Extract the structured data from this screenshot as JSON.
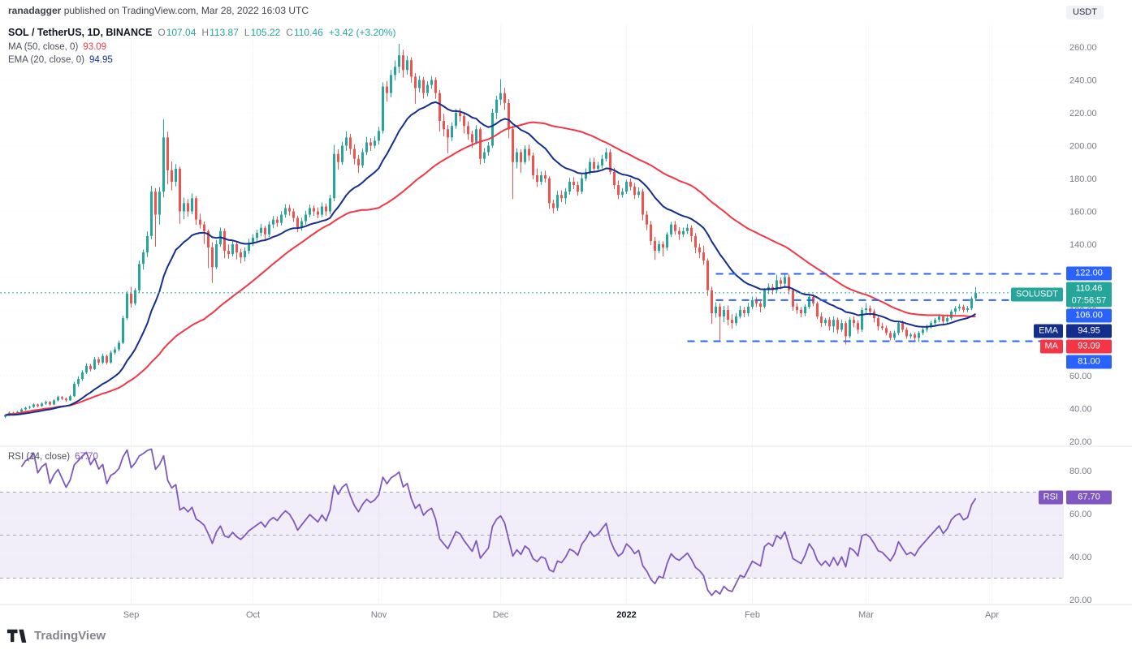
{
  "attribution": {
    "author": "ranadagger",
    "rest": " published on TradingView.com, Mar 28, 2022 16:03 UTC"
  },
  "quote_badge": "USDT",
  "legend": {
    "title": "SOL / TetherUS, 1D, BINANCE",
    "ohlc": [
      {
        "k": "O",
        "v": "107.04"
      },
      {
        "k": "H",
        "v": "113.87"
      },
      {
        "k": "L",
        "v": "105.22"
      },
      {
        "k": "C",
        "v": "110.46"
      }
    ],
    "change": "+3.42 (+3.20%)",
    "ma_label": "MA (50, close, 0)",
    "ma_value": "93.09",
    "ema_label": "EMA (20, close, 0)",
    "ema_value": "94.95",
    "rsi_label": "RSI (14, close)",
    "rsi_value": "67.70"
  },
  "footer": {
    "logo_text": "TradingView"
  },
  "colors": {
    "up": "#26a69a",
    "down": "#ef5350",
    "ma": "#f23645",
    "ema": "#142e8d",
    "level": "#2962ff",
    "last": "#26a69a",
    "rsi": "#7e57c2",
    "axis_text": "#787b86",
    "grid": "#eef1f6",
    "guide": "#a6a9b5",
    "separator": "#e0e3eb",
    "major_tick": "#131722"
  },
  "chart_data": {
    "type": "candlestick",
    "symbol": "SOL/USDT",
    "exchange": "BINANCE",
    "interval": "1D",
    "start_date": "2021-08-01",
    "end_date": "2022-03-28",
    "price_axis_ticks": [
      260,
      240,
      220,
      200,
      180,
      160,
      140,
      120,
      100,
      80,
      60,
      40,
      20
    ],
    "x_ticks": [
      {
        "label": "Sep",
        "index": 31
      },
      {
        "label": "Oct",
        "index": 61
      },
      {
        "label": "Nov",
        "index": 92
      },
      {
        "label": "Dec",
        "index": 122
      },
      {
        "label": "2022",
        "index": 153,
        "major": true
      },
      {
        "label": "Feb",
        "index": 184
      },
      {
        "label": "Mar",
        "index": 212
      },
      {
        "label": "Apr",
        "index": 243
      }
    ],
    "last_price": {
      "value": 110.46,
      "label": "110.46",
      "countdown": "07:56:57",
      "symbol_badge": "SOLUSDT"
    },
    "levels": [
      {
        "value": 122,
        "label": "122.00",
        "start_index": 175
      },
      {
        "value": 106,
        "label": "106.00",
        "start_index": 175
      },
      {
        "value": 81,
        "label": "81.00",
        "start_index": 168
      }
    ],
    "indicators": [
      {
        "name": "MA",
        "type": "sma",
        "period": 50,
        "source": "close",
        "value": 93.09,
        "label": "93.09"
      },
      {
        "name": "EMA",
        "type": "ema",
        "period": 20,
        "source": "close",
        "value": 94.95,
        "label": "94.95"
      }
    ],
    "rsi": {
      "name": "RSI",
      "period": 14,
      "source": "close",
      "value": 67.7,
      "label": "67.70",
      "upper": 70,
      "middle": 50,
      "lower": 30,
      "axis_ticks": [
        80,
        60,
        40,
        20
      ]
    },
    "candles": [
      [
        35,
        36.5,
        34.2,
        36
      ],
      [
        36,
        38.2,
        35.5,
        37.5
      ],
      [
        37.5,
        38,
        35.8,
        36.5
      ],
      [
        36.5,
        38.6,
        36,
        38
      ],
      [
        38,
        40.2,
        37.4,
        39.5
      ],
      [
        39.5,
        41.2,
        38.8,
        40.5
      ],
      [
        40.5,
        41.8,
        39.6,
        41
      ],
      [
        41,
        43.3,
        40.4,
        42.5
      ],
      [
        42.5,
        43.1,
        40.8,
        41.5
      ],
      [
        41.5,
        43.8,
        41,
        43
      ],
      [
        43,
        44.9,
        42.2,
        44
      ],
      [
        44,
        44.6,
        41.8,
        42.5
      ],
      [
        42.5,
        45.8,
        42,
        45
      ],
      [
        45,
        47.9,
        44.4,
        47
      ],
      [
        47,
        47.6,
        45.2,
        46
      ],
      [
        46,
        46.8,
        44,
        45
      ],
      [
        45,
        48.4,
        44.6,
        47.5
      ],
      [
        47.5,
        56.2,
        47,
        55
      ],
      [
        55,
        59.6,
        53.2,
        58
      ],
      [
        58,
        63.4,
        56.8,
        62
      ],
      [
        62,
        67.6,
        61,
        66
      ],
      [
        66,
        67.2,
        62.6,
        64
      ],
      [
        64,
        71.4,
        63.4,
        70
      ],
      [
        70,
        71.2,
        66.4,
        68
      ],
      [
        68,
        73.5,
        67,
        72
      ],
      [
        72,
        72.8,
        66.8,
        68
      ],
      [
        68,
        75.4,
        67.2,
        74
      ],
      [
        74,
        77.6,
        72.8,
        76
      ],
      [
        76,
        81.4,
        74.8,
        80
      ],
      [
        80,
        96.5,
        79.2,
        95
      ],
      [
        95,
        111.5,
        93.8,
        110
      ],
      [
        110,
        114,
        101.5,
        104
      ],
      [
        104,
        113.4,
        102.8,
        112
      ],
      [
        112,
        130.2,
        110.6,
        128
      ],
      [
        128,
        136.8,
        124.5,
        135
      ],
      [
        135,
        147.8,
        132.2,
        145
      ],
      [
        145,
        175.5,
        143,
        172
      ],
      [
        172,
        174.2,
        138.5,
        158
      ],
      [
        158,
        174.8,
        152,
        172
      ],
      [
        172,
        216,
        168.5,
        205
      ],
      [
        205,
        208.5,
        176.5,
        185
      ],
      [
        185,
        190.4,
        172.8,
        178
      ],
      [
        178,
        188.8,
        175.2,
        186
      ],
      [
        186,
        187.2,
        152.5,
        160
      ],
      [
        160,
        168.4,
        155.2,
        165
      ],
      [
        165,
        167.6,
        156.8,
        160
      ],
      [
        160,
        171,
        158.2,
        168
      ],
      [
        168,
        169.2,
        151.8,
        155
      ],
      [
        155,
        158.6,
        149.5,
        152
      ],
      [
        152,
        153.8,
        140.2,
        148
      ],
      [
        148,
        149,
        125.5,
        138
      ],
      [
        138,
        141.2,
        116.5,
        126
      ],
      [
        126,
        142.6,
        124.8,
        140
      ],
      [
        140,
        150.2,
        138.4,
        148
      ],
      [
        148,
        149.6,
        131.5,
        136
      ],
      [
        136,
        139.8,
        131.2,
        134
      ],
      [
        134,
        142.2,
        132.6,
        140
      ],
      [
        140,
        141.6,
        130.8,
        135
      ],
      [
        135,
        137.2,
        128.4,
        132
      ],
      [
        132,
        138,
        129.5,
        136
      ],
      [
        136,
        143.4,
        134.2,
        141
      ],
      [
        141,
        146.2,
        138.8,
        144
      ],
      [
        144,
        148.8,
        141.6,
        147
      ],
      [
        147,
        152.4,
        144.8,
        150
      ],
      [
        150,
        151.2,
        142.6,
        146
      ],
      [
        146,
        154,
        144.4,
        152
      ],
      [
        152,
        157.2,
        149.8,
        155
      ],
      [
        155,
        157,
        150.6,
        153
      ],
      [
        153,
        160.2,
        151.4,
        158
      ],
      [
        158,
        164.4,
        156.2,
        162
      ],
      [
        162,
        164,
        157.4,
        160
      ],
      [
        160,
        161.8,
        153.6,
        156
      ],
      [
        156,
        157.4,
        147.5,
        150
      ],
      [
        150,
        156.2,
        148.2,
        154
      ],
      [
        154,
        160.4,
        152,
        158
      ],
      [
        158,
        164.2,
        156.4,
        162
      ],
      [
        162,
        163.6,
        157.2,
        160
      ],
      [
        160,
        162.4,
        155.8,
        158
      ],
      [
        158,
        165.4,
        156.6,
        163
      ],
      [
        163,
        164.8,
        157.2,
        160
      ],
      [
        160,
        170.2,
        158.4,
        168
      ],
      [
        168,
        200.5,
        166.2,
        195
      ],
      [
        195,
        197.8,
        185.4,
        190
      ],
      [
        190,
        202.4,
        188.2,
        200
      ],
      [
        200,
        208.6,
        196.8,
        205
      ],
      [
        205,
        207.2,
        194.5,
        198
      ],
      [
        198,
        200.8,
        188.6,
        192
      ],
      [
        192,
        194.4,
        183.5,
        188
      ],
      [
        188,
        198.2,
        186.4,
        196
      ],
      [
        196,
        205.4,
        194.2,
        202
      ],
      [
        202,
        204.6,
        196.8,
        200
      ],
      [
        200,
        205.8,
        198.4,
        203
      ],
      [
        203,
        211.4,
        200.6,
        209
      ],
      [
        209,
        238.5,
        207.2,
        236
      ],
      [
        236,
        239.4,
        226.8,
        232
      ],
      [
        232,
        246.2,
        229.4,
        243
      ],
      [
        243,
        251.8,
        239.6,
        248
      ],
      [
        248,
        262,
        244.2,
        255
      ],
      [
        255,
        258.4,
        241.5,
        246
      ],
      [
        246,
        254.6,
        243.2,
        252
      ],
      [
        252,
        253.8,
        238.4,
        242
      ],
      [
        242,
        244.2,
        225.5,
        235
      ],
      [
        235,
        242.6,
        232.4,
        240
      ],
      [
        240,
        241.8,
        228.6,
        232
      ],
      [
        232,
        239.2,
        230,
        237
      ],
      [
        237,
        242.4,
        234.6,
        240
      ],
      [
        240,
        241.6,
        228.5,
        232
      ],
      [
        232,
        233.8,
        208.5,
        215
      ],
      [
        215,
        219.4,
        205.6,
        210
      ],
      [
        210,
        212.6,
        195.4,
        205
      ],
      [
        205,
        214.2,
        202.8,
        212
      ],
      [
        212,
        222.4,
        210.2,
        220
      ],
      [
        220,
        222.8,
        214.6,
        218
      ],
      [
        218,
        219.6,
        207.4,
        212
      ],
      [
        212,
        214.8,
        203.5,
        207
      ],
      [
        207,
        209.2,
        198.6,
        202
      ],
      [
        202,
        212.4,
        200.8,
        210
      ],
      [
        210,
        211.2,
        188.5,
        192
      ],
      [
        192,
        198.6,
        189.4,
        196
      ],
      [
        196,
        202.2,
        193.8,
        200
      ],
      [
        200,
        222.5,
        198.6,
        220
      ],
      [
        220,
        230.4,
        216.2,
        228
      ],
      [
        228,
        240.5,
        224.6,
        232
      ],
      [
        232,
        235.2,
        221.8,
        226
      ],
      [
        226,
        228.4,
        204.5,
        210
      ],
      [
        210,
        212.2,
        167.5,
        190
      ],
      [
        190,
        198.4,
        186.2,
        196
      ],
      [
        196,
        197.8,
        183.5,
        190
      ],
      [
        190,
        200.2,
        188.6,
        198
      ],
      [
        198,
        200.6,
        190.8,
        194
      ],
      [
        194,
        195.8,
        179.5,
        182
      ],
      [
        182,
        186.2,
        174.8,
        178
      ],
      [
        178,
        184.4,
        176.2,
        182
      ],
      [
        182,
        184.8,
        177.6,
        180
      ],
      [
        180,
        181.4,
        161.5,
        165
      ],
      [
        165,
        167.2,
        158.8,
        162
      ],
      [
        162,
        172.4,
        160.2,
        170
      ],
      [
        170,
        172.8,
        165.6,
        168
      ],
      [
        168,
        174.2,
        164.4,
        172
      ],
      [
        172,
        180.4,
        170.2,
        178
      ],
      [
        178,
        180.8,
        173.6,
        176
      ],
      [
        176,
        178.2,
        169.5,
        172
      ],
      [
        172,
        182.4,
        170.6,
        180
      ],
      [
        180,
        186.2,
        178.4,
        184
      ],
      [
        184,
        192.4,
        182.2,
        190
      ],
      [
        190,
        192.8,
        183.6,
        186
      ],
      [
        186,
        190.2,
        184.4,
        188
      ],
      [
        188,
        194.4,
        186.2,
        192
      ],
      [
        192,
        198.6,
        190.4,
        196
      ],
      [
        196,
        197.8,
        182.5,
        184
      ],
      [
        184,
        186.4,
        173.6,
        176
      ],
      [
        176,
        178.8,
        167.5,
        170
      ],
      [
        170,
        174.2,
        168.4,
        172
      ],
      [
        172,
        179.4,
        170.6,
        178
      ],
      [
        178,
        180.2,
        172.8,
        175
      ],
      [
        175,
        177.4,
        167.5,
        170
      ],
      [
        170,
        174.6,
        168.2,
        172
      ],
      [
        172,
        173.8,
        154.5,
        158
      ],
      [
        158,
        160.4,
        148.6,
        152
      ],
      [
        152,
        154.2,
        139.5,
        142
      ],
      [
        142,
        144.6,
        130.5,
        136
      ],
      [
        136,
        142.2,
        134.4,
        140
      ],
      [
        140,
        141.8,
        132.6,
        138
      ],
      [
        138,
        147.4,
        136.2,
        146
      ],
      [
        146,
        153.6,
        144.4,
        152
      ],
      [
        152,
        154.2,
        145.8,
        148
      ],
      [
        148,
        150.4,
        142.6,
        146
      ],
      [
        146,
        150.2,
        144.4,
        148
      ],
      [
        148,
        152.4,
        146.2,
        150
      ],
      [
        150,
        151.6,
        141.5,
        145
      ],
      [
        145,
        146.8,
        134.5,
        138
      ],
      [
        138,
        140.4,
        131.6,
        135
      ],
      [
        135,
        139.2,
        127.5,
        130
      ],
      [
        130,
        131.4,
        108.5,
        112
      ],
      [
        112,
        114.2,
        91.5,
        98
      ],
      [
        98,
        104.6,
        95.4,
        102
      ],
      [
        102,
        104.2,
        81,
        96
      ],
      [
        96,
        102.4,
        92.6,
        100
      ],
      [
        100,
        102.8,
        90.5,
        94
      ],
      [
        94,
        97.4,
        88.6,
        92
      ],
      [
        92,
        98.2,
        90.4,
        96
      ],
      [
        96,
        102.6,
        94.8,
        100
      ],
      [
        100,
        101.8,
        95.6,
        98
      ],
      [
        98,
        104.4,
        96.2,
        102
      ],
      [
        102,
        108.2,
        100.4,
        106
      ],
      [
        106,
        107.8,
        101.6,
        104
      ],
      [
        104,
        105.4,
        98.5,
        102
      ],
      [
        102,
        113.4,
        100.8,
        112
      ],
      [
        112,
        116.2,
        109.6,
        114
      ],
      [
        114,
        115.8,
        109.4,
        112
      ],
      [
        112,
        121.4,
        110.2,
        118
      ],
      [
        118,
        119.8,
        112.6,
        116
      ],
      [
        116,
        122.2,
        114.4,
        120
      ],
      [
        120,
        121.6,
        109.5,
        112
      ],
      [
        112,
        113.4,
        99.5,
        102
      ],
      [
        102,
        104.2,
        97.6,
        100
      ],
      [
        100,
        101.8,
        95.5,
        98
      ],
      [
        98,
        103.4,
        96.2,
        102
      ],
      [
        102,
        109.2,
        100.6,
        108
      ],
      [
        108,
        109.6,
        102.4,
        104
      ],
      [
        104,
        105.2,
        94.5,
        96
      ],
      [
        96,
        98.4,
        89.6,
        92
      ],
      [
        92,
        95.2,
        90.4,
        94
      ],
      [
        94,
        95.6,
        87.5,
        90
      ],
      [
        90,
        96.2,
        86.4,
        94
      ],
      [
        94,
        95.4,
        85.5,
        88
      ],
      [
        88,
        94.2,
        86.6,
        92
      ],
      [
        92,
        93.4,
        79,
        84
      ],
      [
        84,
        95.6,
        82.8,
        94
      ],
      [
        94,
        96.2,
        89.4,
        92
      ],
      [
        92,
        93.8,
        85.5,
        88
      ],
      [
        88,
        101.4,
        86.6,
        100
      ],
      [
        100,
        104.2,
        97.6,
        101
      ],
      [
        101,
        102.8,
        96.4,
        99
      ],
      [
        99,
        100.6,
        92.5,
        95
      ],
      [
        95,
        96.4,
        87.5,
        90
      ],
      [
        90,
        92.2,
        87.6,
        89
      ],
      [
        89,
        90.4,
        84.5,
        86
      ],
      [
        86,
        87.2,
        81.5,
        83
      ],
      [
        83,
        87.4,
        81.8,
        86
      ],
      [
        86,
        93.2,
        84.6,
        92
      ],
      [
        92,
        93.6,
        86.5,
        88
      ],
      [
        88,
        89.4,
        82.5,
        84
      ],
      [
        84,
        86.2,
        82.6,
        85
      ],
      [
        85,
        86.4,
        81.5,
        83
      ],
      [
        83,
        87.2,
        80.5,
        86
      ],
      [
        86,
        89.4,
        84.6,
        88
      ],
      [
        88,
        91.2,
        86.4,
        90
      ],
      [
        90,
        93.4,
        88.6,
        92
      ],
      [
        92,
        95.2,
        90.4,
        94
      ],
      [
        94,
        97.4,
        92.6,
        96
      ],
      [
        96,
        97.2,
        91.5,
        93
      ],
      [
        93,
        96.4,
        91.6,
        95
      ],
      [
        95,
        100.2,
        93.8,
        99
      ],
      [
        99,
        102.4,
        97.2,
        101
      ],
      [
        101,
        103.6,
        99.4,
        102
      ],
      [
        102,
        103.2,
        98.5,
        100
      ],
      [
        100,
        102.4,
        98.6,
        101
      ],
      [
        101,
        108.2,
        99.8,
        107
      ],
      [
        107.04,
        113.87,
        105.22,
        110.46
      ]
    ]
  }
}
